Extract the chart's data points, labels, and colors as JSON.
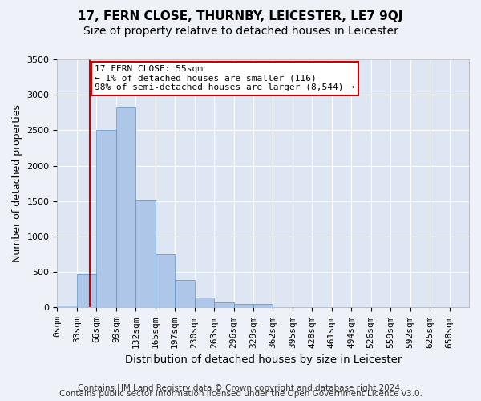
{
  "title": "17, FERN CLOSE, THURNBY, LEICESTER, LE7 9QJ",
  "subtitle": "Size of property relative to detached houses in Leicester",
  "xlabel": "Distribution of detached houses by size in Leicester",
  "ylabel": "Number of detached properties",
  "bin_labels": [
    "0sqm",
    "33sqm",
    "66sqm",
    "99sqm",
    "132sqm",
    "165sqm",
    "197sqm",
    "230sqm",
    "263sqm",
    "296sqm",
    "329sqm",
    "362sqm",
    "395sqm",
    "428sqm",
    "461sqm",
    "494sqm",
    "526sqm",
    "559sqm",
    "592sqm",
    "625sqm",
    "658sqm"
  ],
  "bar_values": [
    30,
    470,
    2500,
    2820,
    1520,
    750,
    390,
    140,
    75,
    50,
    55,
    0,
    0,
    0,
    0,
    0,
    0,
    0,
    0,
    0
  ],
  "bar_color": "#aec6e8",
  "bar_edge_color": "#5a8fc2",
  "vline_x": 55,
  "vline_color": "#cc0000",
  "annotation_text": "17 FERN CLOSE: 55sqm\n← 1% of detached houses are smaller (116)\n98% of semi-detached houses are larger (8,544) →",
  "annotation_box_color": "#cc0000",
  "ylim": [
    0,
    3500
  ],
  "yticks": [
    0,
    500,
    1000,
    1500,
    2000,
    2500,
    3000,
    3500
  ],
  "footer_line1": "Contains HM Land Registry data © Crown copyright and database right 2024.",
  "footer_line2": "Contains public sector information licensed under the Open Government Licence v3.0.",
  "plot_bg_color": "#dde6f2",
  "fig_bg_color": "#eef1f7",
  "grid_color": "#ffffff",
  "title_fontsize": 11,
  "subtitle_fontsize": 10,
  "axis_label_fontsize": 9,
  "tick_fontsize": 8,
  "footer_fontsize": 7.5,
  "bin_width": 33
}
